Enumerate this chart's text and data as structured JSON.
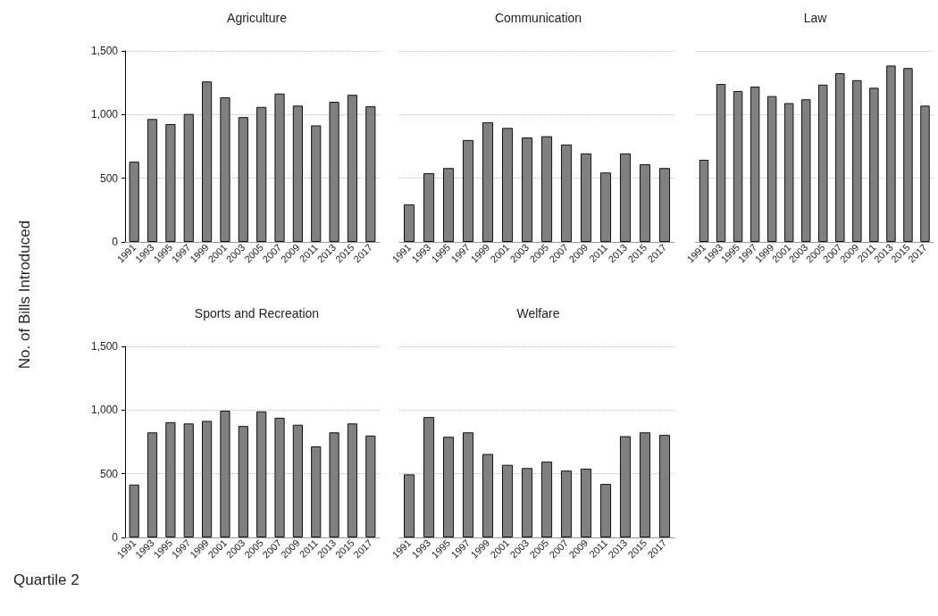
{
  "chart_data": [
    {
      "type": "bar",
      "title": "Agriculture",
      "ylabel": "No. of Bills Introduced",
      "annotations": [
        "Quartile 2"
      ],
      "categories": [
        "1991",
        "1993",
        "1995",
        "1997",
        "1999",
        "2001",
        "2003",
        "2005",
        "2007",
        "2009",
        "2011",
        "2013",
        "2015",
        "2017"
      ],
      "values": [
        630,
        965,
        925,
        1005,
        1260,
        1135,
        980,
        1060,
        1165,
        1070,
        915,
        1100,
        1155,
        1065
      ],
      "color": "#808080",
      "ylim": [
        0,
        1500
      ],
      "yticks": [
        {
          "value": 0,
          "label": "0"
        },
        {
          "value": 500,
          "label": "500"
        },
        {
          "value": 1000,
          "label": "1,000"
        },
        {
          "value": 1500,
          "label": "1,500"
        }
      ],
      "grid": "y"
    },
    {
      "type": "bar",
      "title": "Communication",
      "categories": [
        "1991",
        "1993",
        "1995",
        "1997",
        "1999",
        "2001",
        "2003",
        "2005",
        "2007",
        "2009",
        "2011",
        "2013",
        "2015",
        "2017"
      ],
      "values": [
        295,
        540,
        580,
        800,
        940,
        895,
        820,
        830,
        765,
        695,
        545,
        695,
        610,
        580
      ],
      "color": "#808080",
      "ylim": [
        0,
        1500
      ],
      "yticks": [
        {
          "value": 0,
          "label": null
        },
        {
          "value": 500,
          "label": null
        },
        {
          "value": 1000,
          "label": null
        },
        {
          "value": 1500,
          "label": null
        }
      ],
      "grid": "y",
      "tick_labels": "x"
    },
    {
      "type": "bar",
      "title": "Law",
      "categories": [
        "1991",
        "1993",
        "1995",
        "1997",
        "1999",
        "2001",
        "2003",
        "2005",
        "2007",
        "2009",
        "2011",
        "2013",
        "2015",
        "2017"
      ],
      "values": [
        645,
        1240,
        1185,
        1220,
        1145,
        1090,
        1120,
        1235,
        1325,
        1270,
        1210,
        1385,
        1365,
        1070
      ],
      "color": "#808080",
      "ylim": [
        0,
        1500
      ],
      "yticks": [
        {
          "value": 0,
          "label": null
        },
        {
          "value": 500,
          "label": null
        },
        {
          "value": 1000,
          "label": null
        },
        {
          "value": 1500,
          "label": null
        }
      ],
      "grid": "y",
      "tick_labels": "x"
    },
    {
      "type": "bar",
      "title": "Sports and Recreation",
      "categories": [
        "1991",
        "1993",
        "1995",
        "1997",
        "1999",
        "2001",
        "2003",
        "2005",
        "2007",
        "2009",
        "2011",
        "2013",
        "2015",
        "2017"
      ],
      "values": [
        415,
        825,
        905,
        895,
        915,
        995,
        875,
        990,
        940,
        885,
        715,
        825,
        895,
        800
      ],
      "color": "#808080",
      "ylim": [
        0,
        1500
      ],
      "yticks": [
        {
          "value": 0,
          "label": "0"
        },
        {
          "value": 500,
          "label": "500"
        },
        {
          "value": 1000,
          "label": "1,000"
        },
        {
          "value": 1500,
          "label": "1,500"
        }
      ],
      "grid": "y"
    },
    {
      "type": "bar",
      "title": "Welfare",
      "categories": [
        "1991",
        "1993",
        "1995",
        "1997",
        "1999",
        "2001",
        "2003",
        "2005",
        "2007",
        "2009",
        "2011",
        "2013",
        "2015",
        "2017"
      ],
      "values": [
        495,
        945,
        790,
        825,
        655,
        570,
        545,
        595,
        525,
        540,
        420,
        795,
        825,
        805
      ],
      "color": "#808080",
      "ylim": [
        0,
        1500
      ],
      "yticks": [
        {
          "value": 0,
          "label": null
        },
        {
          "value": 500,
          "label": null
        },
        {
          "value": 1000,
          "label": null
        },
        {
          "value": 1500,
          "label": null
        }
      ],
      "grid": "y",
      "tick_labels": "x"
    }
  ]
}
